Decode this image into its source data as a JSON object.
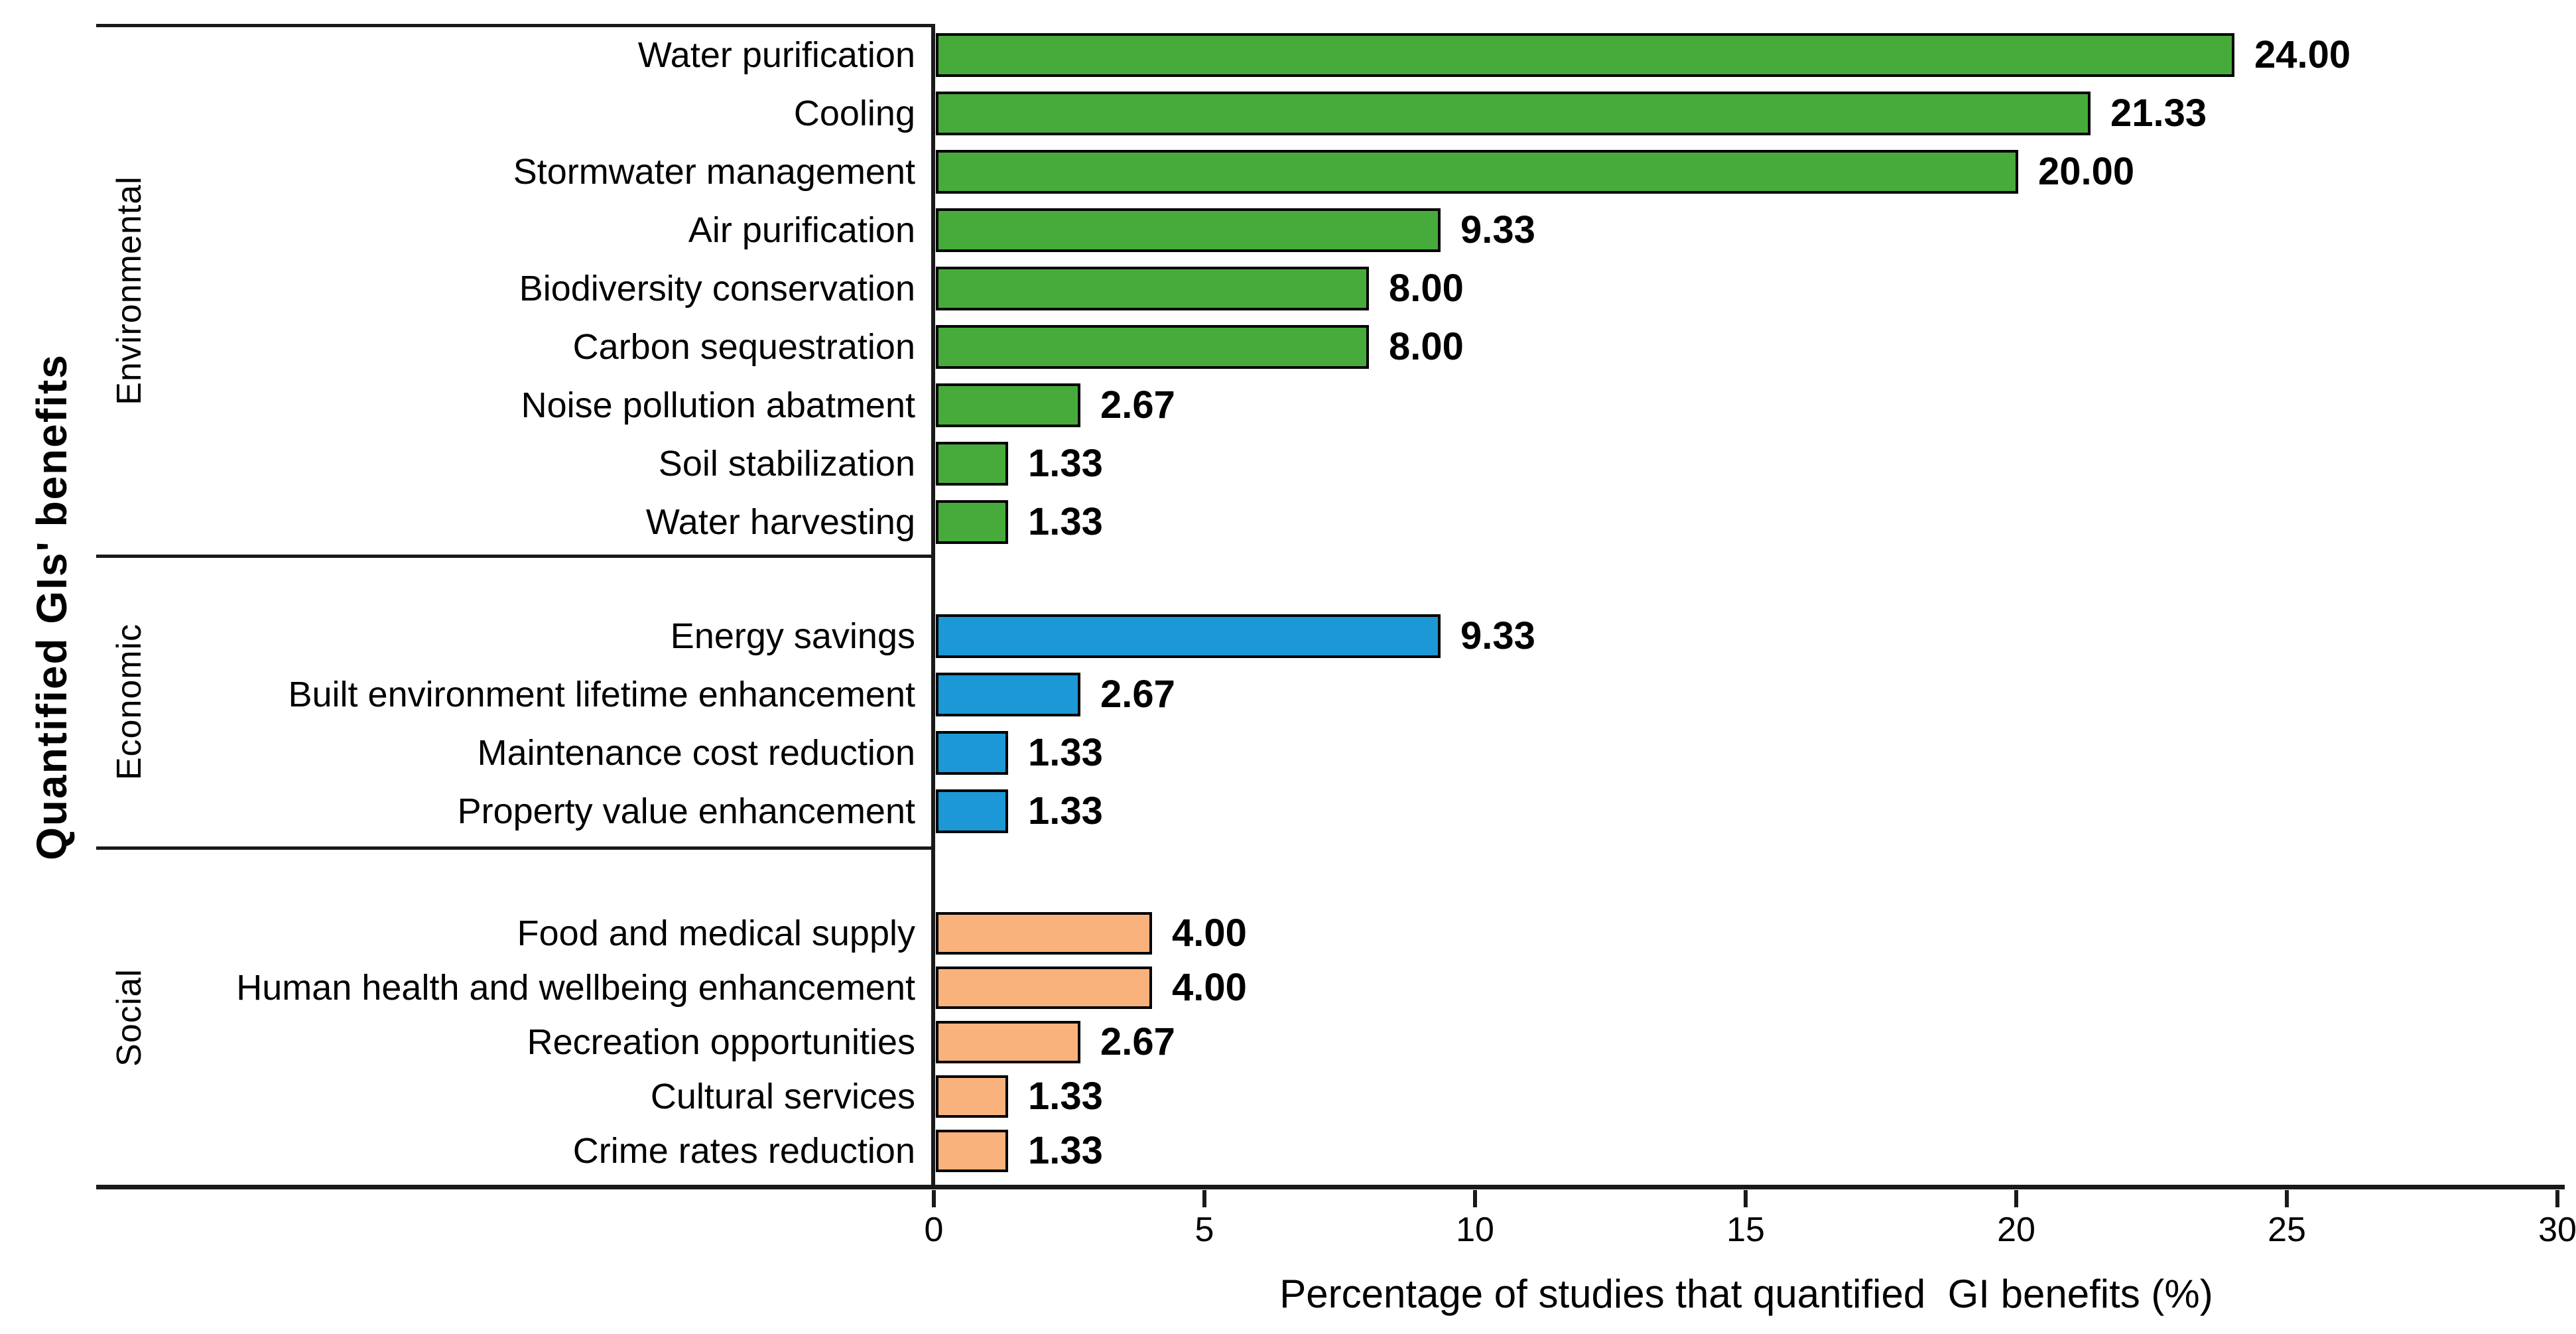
{
  "y_axis": {
    "title": "Quantified GIs' benefits"
  },
  "x_axis": {
    "title": "Percentage of studies that quantified  GI benefits (%)"
  },
  "chart_data": {
    "type": "bar",
    "orientation": "horizontal",
    "title": "",
    "xlabel": "Percentage of studies that quantified  GI benefits (%)",
    "ylabel": "Quantified GIs' benefits",
    "xlim": [
      0,
      30
    ],
    "x_ticks": [
      "0",
      "5",
      "10",
      "15",
      "20",
      "25",
      "30"
    ],
    "grid": false,
    "legend": false,
    "bar_border_color": "#000000",
    "groups": [
      {
        "name": "Environmental",
        "color": "#47ab3b",
        "items": [
          {
            "label": "Water purification",
            "value": 24.0,
            "value_label": "24.00"
          },
          {
            "label": "Cooling",
            "value": 21.33,
            "value_label": "21.33"
          },
          {
            "label": "Stormwater management",
            "value": 20.0,
            "value_label": "20.00"
          },
          {
            "label": "Air purification",
            "value": 9.33,
            "value_label": "9.33"
          },
          {
            "label": "Biodiversity conservation",
            "value": 8.0,
            "value_label": "8.00"
          },
          {
            "label": "Carbon sequestration",
            "value": 8.0,
            "value_label": "8.00"
          },
          {
            "label": "Noise pollution abatment",
            "value": 2.67,
            "value_label": "2.67"
          },
          {
            "label": "Soil stabilization",
            "value": 1.33,
            "value_label": "1.33"
          },
          {
            "label": "Water harvesting",
            "value": 1.33,
            "value_label": "1.33"
          }
        ]
      },
      {
        "name": "Economic",
        "color": "#1b98d5",
        "items": [
          {
            "label": "Energy savings",
            "value": 9.33,
            "value_label": "9.33"
          },
          {
            "label": "Built environment lifetime enhancement",
            "value": 2.67,
            "value_label": "2.67"
          },
          {
            "label": "Maintenance cost reduction",
            "value": 1.33,
            "value_label": "1.33"
          },
          {
            "label": "Property value enhancement",
            "value": 1.33,
            "value_label": "1.33"
          }
        ]
      },
      {
        "name": "Social",
        "color": "#f9b27c",
        "items": [
          {
            "label": "Food and medical supply",
            "value": 4.0,
            "value_label": "4.00"
          },
          {
            "label": "Human health and wellbeing enhancement",
            "value": 4.0,
            "value_label": "4.00"
          },
          {
            "label": "Recreation opportunities",
            "value": 2.67,
            "value_label": "2.67"
          },
          {
            "label": "Cultural services",
            "value": 1.33,
            "value_label": "1.33"
          },
          {
            "label": "Crime rates reduction",
            "value": 1.33,
            "value_label": "1.33"
          }
        ]
      }
    ]
  }
}
